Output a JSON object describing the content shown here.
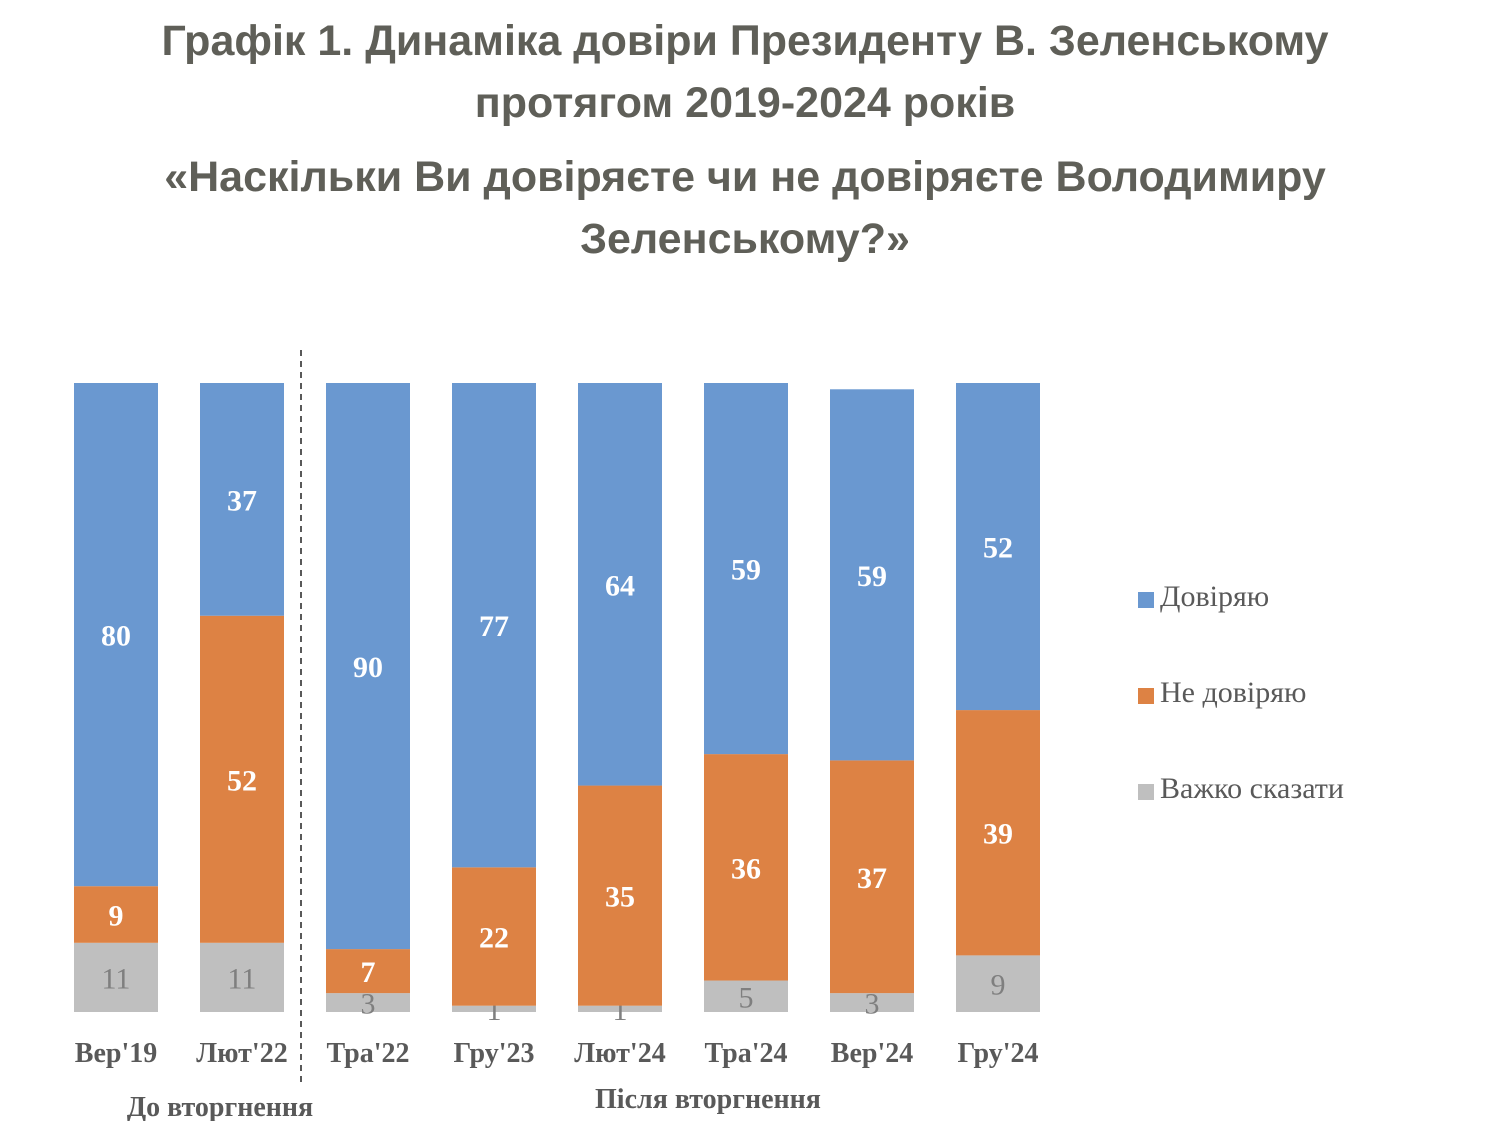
{
  "title": {
    "line1": "Графік 1. Динаміка довіри Президенту В. Зеленському",
    "line2": "протягом 2019-2024 років"
  },
  "subtitle": {
    "line1": "«Наскільки Ви довіряєте чи не довіряєте Володимиру",
    "line2": "Зеленському?»"
  },
  "chart_data": {
    "type": "bar",
    "stacked": true,
    "categories": [
      "Вер'19",
      "Лют'22",
      "Тра'22",
      "Гру'23",
      "Лют'24",
      "Тра'24",
      "Вер'24",
      "Гру'24"
    ],
    "series": [
      {
        "name": "Важко сказати",
        "color": "#bfbfbf",
        "label_color": "#7f7f7f",
        "values": [
          11,
          11,
          3,
          1,
          1,
          5,
          3,
          9
        ]
      },
      {
        "name": "Не довіряю",
        "color": "#dd8244",
        "label_color": "#ffffff",
        "values": [
          9,
          52,
          7,
          22,
          35,
          36,
          37,
          39
        ]
      },
      {
        "name": "Довіряю",
        "color": "#6a98d0",
        "label_color": "#ffffff",
        "values": [
          80,
          37,
          90,
          77,
          64,
          59,
          59,
          52
        ]
      }
    ],
    "legend_order": [
      "Довіряю",
      "Не довіряю",
      "Важко сказати"
    ],
    "legend_position": "right",
    "groups": [
      {
        "label": "До вторгнення",
        "categories": [
          "Вер'19",
          "Лют'22"
        ]
      },
      {
        "label": "Після вторгнення",
        "categories": [
          "Тра'22",
          "Гру'23",
          "Лют'24",
          "Тра'24",
          "Вер'24",
          "Гру'24"
        ]
      }
    ],
    "divider": "dashed line between Лют'22 and Тра'22",
    "ylim": [
      0,
      100
    ],
    "grid": false
  }
}
